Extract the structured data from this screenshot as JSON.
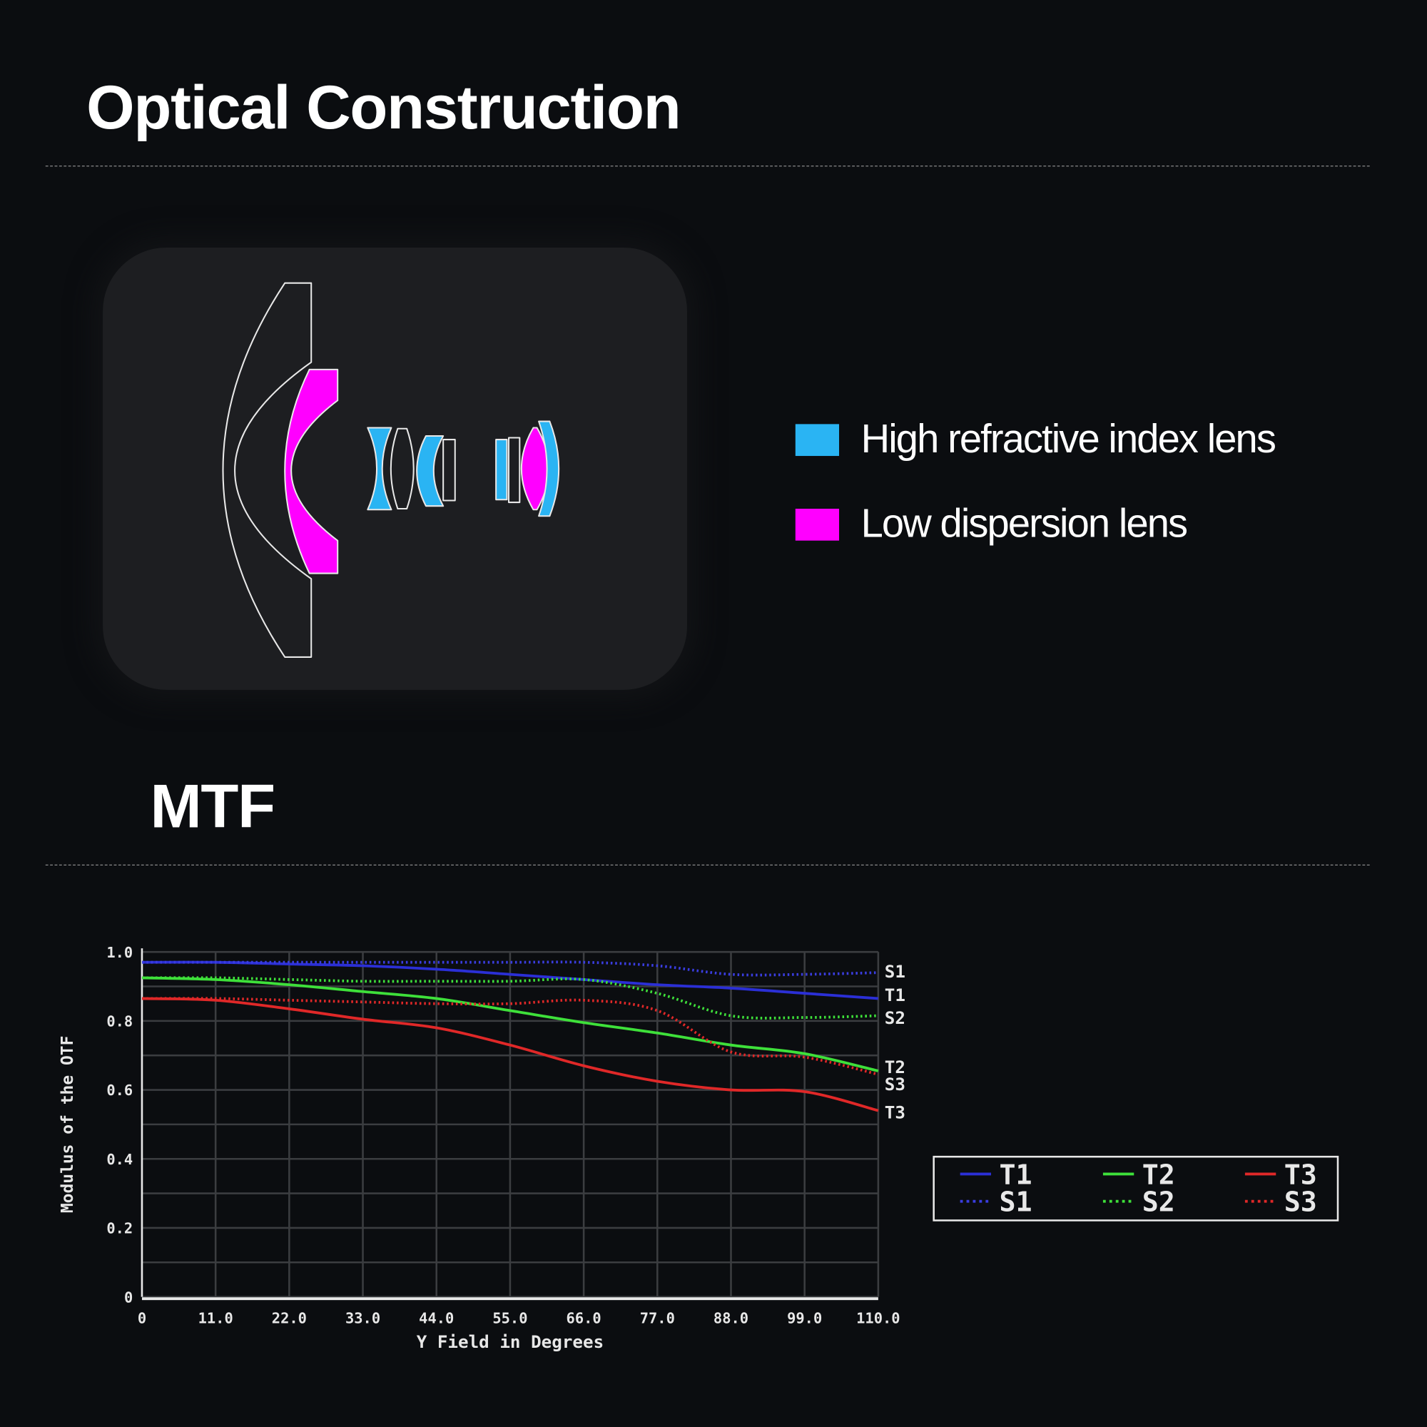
{
  "sections": {
    "optical_title": "Optical Construction",
    "mtf_title": "MTF"
  },
  "lens_legend": [
    {
      "label": "High refractive index lens",
      "color": "#2ab4f3"
    },
    {
      "label": "Low dispersion lens",
      "color": "#ff00ff"
    }
  ],
  "chart_data": {
    "type": "line",
    "xlabel": "Y Field in Degrees",
    "ylabel": "Modulus of the OTF",
    "xlim": [
      0,
      110
    ],
    "ylim": [
      0,
      1.0
    ],
    "x_ticks": [
      "0",
      "11.0",
      "22.0",
      "33.0",
      "44.0",
      "55.0",
      "66.0",
      "77.0",
      "88.0",
      "99.0",
      "110.0"
    ],
    "y_ticks": [
      "0",
      "0.2",
      "0.4",
      "0.6",
      "0.8",
      "1.0"
    ],
    "grid": true,
    "legend_placement": "right",
    "x": [
      0,
      11,
      22,
      33,
      44,
      55,
      66,
      77,
      88,
      99,
      110
    ],
    "series": [
      {
        "name": "T1",
        "style": "solid",
        "color": "#2b2fd6",
        "values": [
          0.97,
          0.97,
          0.965,
          0.96,
          0.95,
          0.935,
          0.92,
          0.905,
          0.895,
          0.88,
          0.865
        ]
      },
      {
        "name": "S1",
        "style": "dotted",
        "color": "#3a3de0",
        "values": [
          0.97,
          0.97,
          0.97,
          0.97,
          0.97,
          0.97,
          0.97,
          0.96,
          0.935,
          0.935,
          0.94
        ]
      },
      {
        "name": "T2",
        "style": "solid",
        "color": "#3ee03a",
        "values": [
          0.925,
          0.92,
          0.905,
          0.885,
          0.865,
          0.83,
          0.795,
          0.765,
          0.73,
          0.705,
          0.655
        ]
      },
      {
        "name": "S2",
        "style": "dotted",
        "color": "#3ee03a",
        "values": [
          0.925,
          0.925,
          0.92,
          0.915,
          0.915,
          0.915,
          0.92,
          0.88,
          0.815,
          0.81,
          0.815
        ]
      },
      {
        "name": "T3",
        "style": "solid",
        "color": "#e02828",
        "values": [
          0.865,
          0.86,
          0.835,
          0.805,
          0.78,
          0.73,
          0.67,
          0.625,
          0.6,
          0.595,
          0.54
        ]
      },
      {
        "name": "S3",
        "style": "dotted",
        "color": "#e02828",
        "values": [
          0.865,
          0.865,
          0.86,
          0.855,
          0.85,
          0.85,
          0.86,
          0.83,
          0.71,
          0.695,
          0.645
        ]
      }
    ],
    "end_labels": [
      {
        "text": "S1",
        "series": "S1"
      },
      {
        "text": "T1",
        "series": "T1"
      },
      {
        "text": "S2",
        "series": "S2"
      },
      {
        "text": "T2",
        "series": "T2"
      },
      {
        "text": "S3",
        "series": "S3"
      },
      {
        "text": "T3",
        "series": "T3"
      }
    ]
  }
}
